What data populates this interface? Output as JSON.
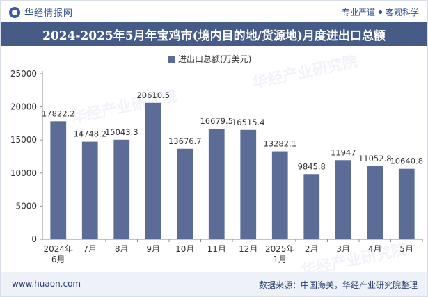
{
  "header": {
    "brand": "华经情报网",
    "tagline_left": "专业严谨",
    "tagline_right": "客观科学"
  },
  "title": "2024-2025年5月年宝鸡市(境内目的地/货源地)月度进出口总额",
  "watermarks": [
    "华经产业研究院",
    "华经产业研究院",
    "华经产业研究院"
  ],
  "footer": {
    "site": "www.huaon.com",
    "source": "数据来源：中国海关，华经产业研究院整理"
  },
  "colors": {
    "bar": "#5b6c96",
    "title_bg": "#465b86",
    "axis_text": "#333333"
  },
  "chart_data": {
    "type": "bar",
    "legend": "进出口总额(万美元)",
    "legend_position": "top-center",
    "categories": [
      [
        "2024年",
        "6月"
      ],
      [
        "7月"
      ],
      [
        "8月"
      ],
      [
        "9月"
      ],
      [
        "10月"
      ],
      [
        "11月"
      ],
      [
        "12月"
      ],
      [
        "2025年",
        "1月"
      ],
      [
        "2月"
      ],
      [
        "3月"
      ],
      [
        "4月"
      ],
      [
        "5月"
      ]
    ],
    "values": [
      17822.2,
      14748.2,
      15043.3,
      20610.5,
      13676.7,
      16679.5,
      16515.4,
      13282.1,
      9845.8,
      11947,
      11052.8,
      10640.8
    ],
    "labels": [
      "17822.2",
      "14748.2",
      "15043.3",
      "20610.5",
      "13676.7",
      "16679.5",
      "16515.4",
      "13282.1",
      "9845.8",
      "11947",
      "11052.8",
      "10640.8"
    ],
    "yticks": [
      "0",
      "5000",
      "10000",
      "15000",
      "20000",
      "25000"
    ],
    "ylim": [
      0,
      25000
    ],
    "grid": false
  }
}
